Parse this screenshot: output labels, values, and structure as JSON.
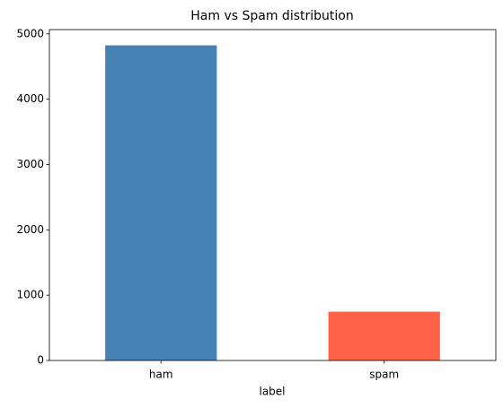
{
  "chart_data": {
    "type": "bar",
    "title": "Ham vs Spam distribution",
    "x_label": "label",
    "categories": [
      "ham",
      "spam"
    ],
    "values": [
      4825,
      747
    ],
    "colors": [
      "#4682b4",
      "#ff6347"
    ],
    "ylim": [
      0,
      5066
    ],
    "yticks": [
      0,
      1000,
      2000,
      3000,
      4000,
      5000
    ],
    "grid": false
  }
}
